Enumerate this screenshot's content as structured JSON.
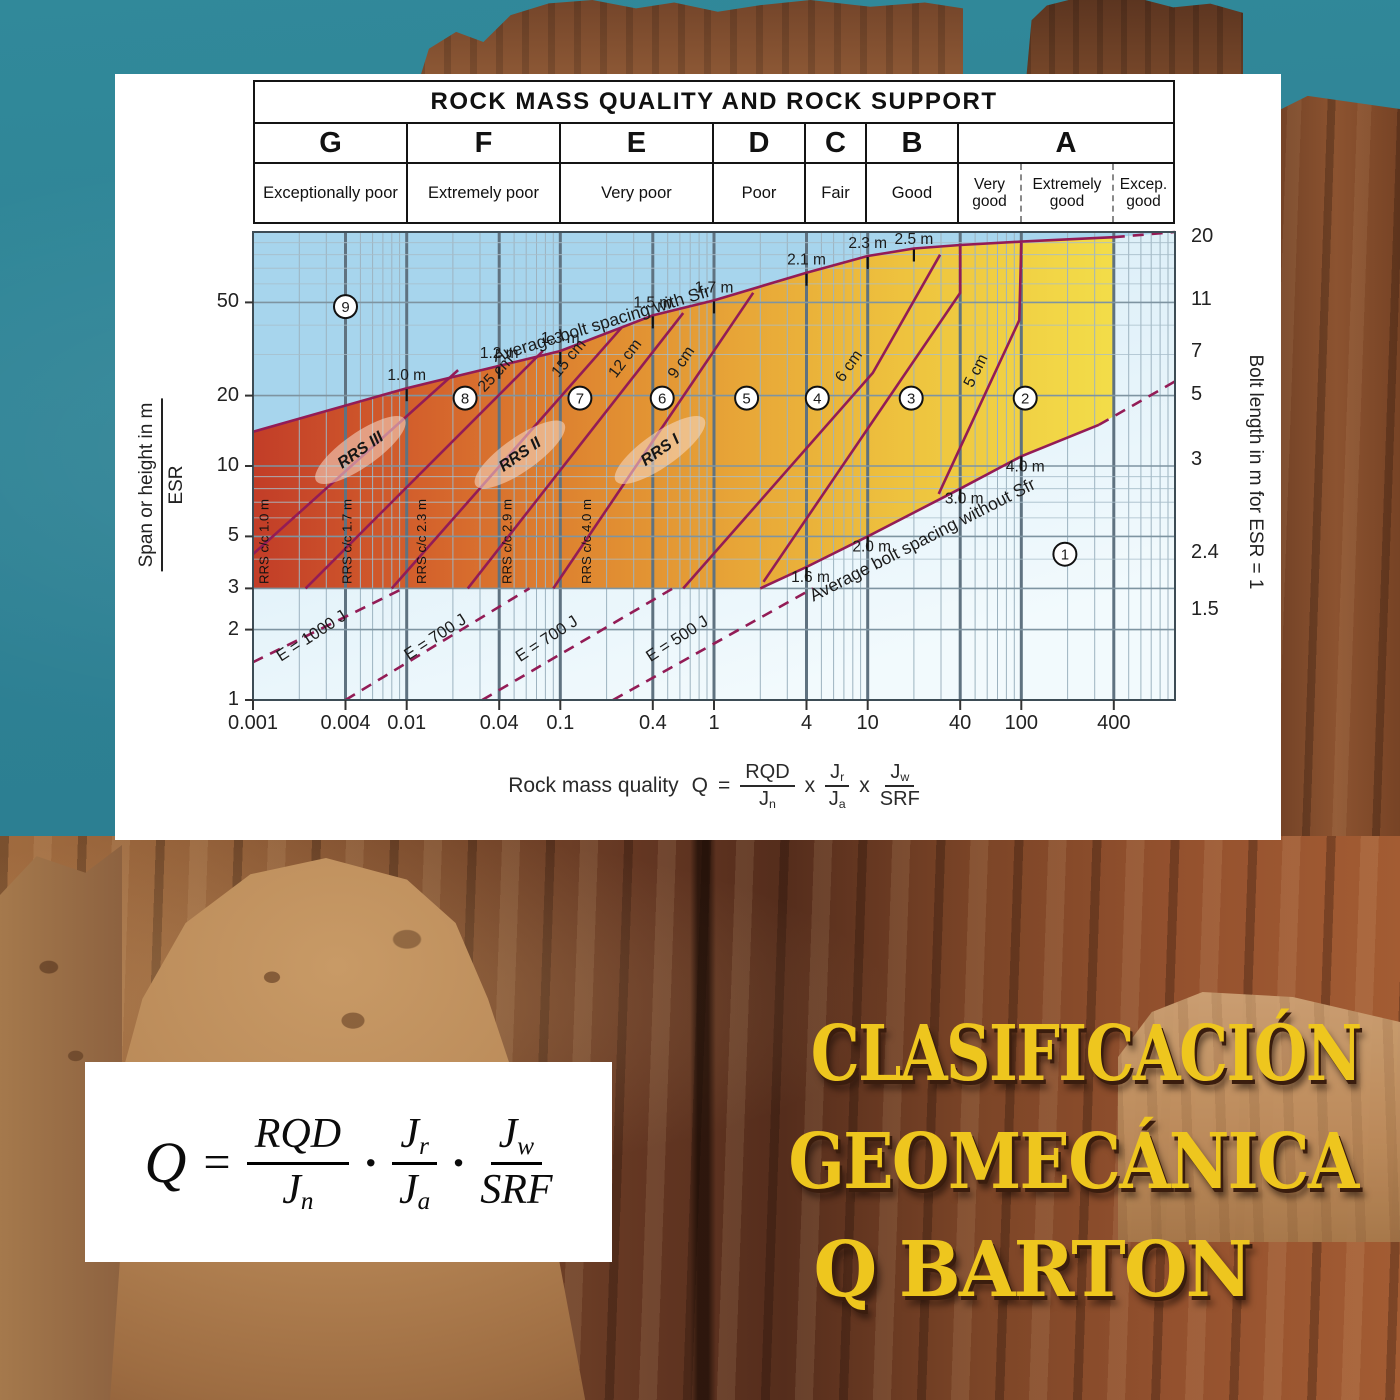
{
  "poster": {
    "line1": "CLASIFICACIÓN",
    "line2": "GEOMECÁNICA",
    "line3": "Q BARTON",
    "color": "#eec61e"
  },
  "box_formula": {
    "lhs": "Q",
    "eq": "=",
    "dot": "·",
    "terms": [
      {
        "num": "RQD",
        "num_sub": "",
        "den": "J",
        "den_sub": "n"
      },
      {
        "num": "J",
        "num_sub": "r",
        "den": "J",
        "den_sub": "a"
      },
      {
        "num": "J",
        "num_sub": "w",
        "den": "SRF",
        "den_sub": ""
      }
    ]
  },
  "chart": {
    "header": {
      "title": "ROCK MASS QUALITY AND ROCK SUPPORT",
      "columns": [
        {
          "letter": "G",
          "label": "Exceptionally poor",
          "q1": 0.001,
          "q2": 0.01
        },
        {
          "letter": "F",
          "label": "Extremely poor",
          "q1": 0.01,
          "q2": 0.1
        },
        {
          "letter": "E",
          "label": "Very poor",
          "q1": 0.1,
          "q2": 1
        },
        {
          "letter": "D",
          "label": "Poor",
          "q1": 1,
          "q2": 4
        },
        {
          "letter": "C",
          "label": "Fair",
          "q1": 4,
          "q2": 10
        },
        {
          "letter": "B",
          "label": "Good",
          "q1": 10,
          "q2": 40
        },
        {
          "letter": "A",
          "label": "",
          "q1": 40,
          "q2": 1000
        }
      ],
      "a_sub": [
        {
          "label": "Very good",
          "q1": 40,
          "q2": 100
        },
        {
          "label": "Extremely good",
          "q1": 100,
          "q2": 400
        },
        {
          "label": "Excep. good",
          "q1": 400,
          "q2": 1000
        }
      ]
    },
    "left_axis": {
      "title_num": "Span or height in m",
      "title_den": "ESR",
      "ticks": [
        {
          "label": "50",
          "s": 50
        },
        {
          "label": "20",
          "s": 20
        },
        {
          "label": "10",
          "s": 10
        },
        {
          "label": "5",
          "s": 5
        },
        {
          "label": "3",
          "s": 3
        },
        {
          "label": "2",
          "s": 2
        },
        {
          "label": "1",
          "s": 1
        }
      ]
    },
    "bottom_axis": {
      "ticks": [
        {
          "label": "0.001",
          "q": 0.001
        },
        {
          "label": "0.004",
          "q": 0.004
        },
        {
          "label": "0.01",
          "q": 0.01
        },
        {
          "label": "0.04",
          "q": 0.04
        },
        {
          "label": "0.1",
          "q": 0.1
        },
        {
          "label": "0.4",
          "q": 0.4
        },
        {
          "label": "1",
          "q": 1
        },
        {
          "label": "4",
          "q": 4
        },
        {
          "label": "10",
          "q": 10
        },
        {
          "label": "40",
          "q": 40
        },
        {
          "label": "100",
          "q": 100
        },
        {
          "label": "400",
          "q": 400
        }
      ]
    },
    "right_axis": {
      "title": "Bolt length in m for ESR = 1",
      "ticks": [
        {
          "label": "20",
          "f": 0.011
        },
        {
          "label": "11",
          "f": 0.145
        },
        {
          "label": "7",
          "f": 0.256
        },
        {
          "label": "5",
          "f": 0.348
        },
        {
          "label": "3",
          "f": 0.487
        },
        {
          "label": "2.4",
          "f": 0.686
        },
        {
          "label": "1.5",
          "f": 0.808
        }
      ]
    },
    "caption": {
      "lead": "Rock mass quality",
      "lhs": "Q",
      "eq": "=",
      "mult": "x",
      "terms": [
        {
          "num": "RQD",
          "num_sub": "",
          "den": "J",
          "den_sub": "n"
        },
        {
          "num": "J",
          "num_sub": "r",
          "den": "J",
          "den_sub": "a"
        },
        {
          "num": "J",
          "num_sub": "w",
          "den": "SRF",
          "den_sub": ""
        }
      ]
    },
    "chart_data": {
      "type": "line",
      "title": "ROCK MASS QUALITY AND ROCK SUPPORT",
      "x_axis": {
        "label": "Rock mass quality Q",
        "scale": "log",
        "range": [
          0.001,
          1000
        ]
      },
      "y_axis": {
        "label": "Span or height in m / ESR",
        "scale": "log",
        "range": [
          1,
          100
        ]
      },
      "colors": {
        "line": "#931c56",
        "zone_blue": "#a7d5ed",
        "pale_blue": "#cfe8f5",
        "band": [
          "#c23d28",
          "#d4622c",
          "#e08a31",
          "#e8a838",
          "#eec33e",
          "#f3dd49"
        ]
      },
      "boundaries": {
        "bolt_spacing_with_sfr": {
          "solid": [
            [
              0.001,
              14
            ],
            [
              0.01,
              21.5
            ],
            [
              0.1,
              31
            ],
            [
              0.4,
              44
            ],
            [
              1,
              51
            ],
            [
              4,
              67
            ],
            [
              10,
              79
            ],
            [
              20,
              85
            ],
            [
              40,
              88
            ],
            [
              100,
              91
            ],
            [
              400,
              95
            ]
          ],
          "dashed": [
            [
              400,
              95
            ],
            [
              1000,
              100
            ]
          ]
        },
        "bolt_spacing_without_sfr": {
          "solid": [
            [
              2,
              3
            ],
            [
              4,
              3.7
            ],
            [
              10,
              5
            ],
            [
              40,
              8
            ],
            [
              100,
              11
            ],
            [
              320,
              15
            ]
          ],
          "dashed": [
            [
              320,
              15
            ],
            [
              1000,
              23
            ]
          ]
        },
        "band_bottom_span": 3
      },
      "zone_lines": [
        [
          [
            0.001,
            4.2
          ],
          [
            0.0216,
            25.7
          ]
        ],
        [
          [
            0.0022,
            3
          ],
          [
            0.077,
            31
          ]
        ],
        [
          [
            0.008,
            3
          ],
          [
            0.25,
            39
          ]
        ],
        [
          [
            0.025,
            3
          ],
          [
            0.63,
            45
          ]
        ],
        [
          [
            0.09,
            3
          ],
          [
            1.8,
            55
          ]
        ],
        [
          [
            0.63,
            3
          ],
          [
            10.8,
            25
          ],
          [
            29.6,
            80
          ]
        ],
        [
          [
            2.1,
            3.2
          ],
          [
            40,
            55
          ],
          [
            40,
            88
          ]
        ],
        [
          [
            29,
            7.6
          ],
          [
            97,
            42
          ],
          [
            100,
            90
          ]
        ]
      ],
      "energy_lines": [
        {
          "label": "E = 1000 J",
          "pts": [
            [
              0.001,
              1.45
            ],
            [
              0.0095,
              3
            ]
          ],
          "label_at": [
            0.0025,
            1.8
          ]
        },
        {
          "label": "E = 700 J",
          "pts": [
            [
              0.004,
              1
            ],
            [
              0.063,
              3
            ]
          ],
          "label_at": [
            0.016,
            1.78
          ]
        },
        {
          "label": "E = 700 J",
          "pts": [
            [
              0.031,
              1
            ],
            [
              0.54,
              3
            ]
          ],
          "label_at": [
            0.085,
            1.75
          ]
        },
        {
          "label": "E = 500 J",
          "pts": [
            [
              0.22,
              1
            ],
            [
              4.4,
              3
            ]
          ],
          "label_at": [
            0.6,
            1.75
          ]
        }
      ],
      "spacing_ticks_with": [
        {
          "label": "1.0 m",
          "q": 0.01
        },
        {
          "label": "1.2 m",
          "q": 0.04
        },
        {
          "label": "1.3 m",
          "q": 0.1
        },
        {
          "label": "1.5 m",
          "q": 0.4
        },
        {
          "label": "1.7 m",
          "q": 1
        },
        {
          "label": "2.1 m",
          "q": 4
        },
        {
          "label": "2.3 m",
          "q": 10
        },
        {
          "label": "2.5 m",
          "q": 20
        }
      ],
      "spacing_ticks_without": [
        {
          "label": "1.6 m",
          "q": 4
        },
        {
          "label": "2.0 m",
          "q": 10
        },
        {
          "label": "3.0 m",
          "q": 40
        },
        {
          "label": "4.0 m",
          "q": 100
        }
      ],
      "cm_labels": [
        {
          "label": "25 cm",
          "q": 0.04,
          "s": 24,
          "rot": -47
        },
        {
          "label": "15 cm",
          "q": 0.12,
          "s": 28,
          "rot": -50
        },
        {
          "label": "12 cm",
          "q": 0.28,
          "s": 28,
          "rot": -53
        },
        {
          "label": "9 cm",
          "q": 0.65,
          "s": 27,
          "rot": -56
        },
        {
          "label": "6 cm",
          "q": 8,
          "s": 26,
          "rot": -55
        },
        {
          "label": "5 cm",
          "q": 54,
          "s": 25,
          "rot": -63
        }
      ],
      "line_annotations": [
        {
          "label": "Average bolt spacing with Sfr",
          "q": 0.19,
          "s": 38.5,
          "rot": -17
        },
        {
          "label": "Average bolt spacing without Sfr",
          "q": 23.6,
          "s": 4.6,
          "rot": -27
        }
      ],
      "rrs": [
        {
          "label": "RRS III",
          "q": 0.005,
          "s": 11.7
        },
        {
          "label": "RRS II",
          "q": 0.0546,
          "s": 11.2
        },
        {
          "label": "RRS I",
          "q": 0.445,
          "s": 11.7
        }
      ],
      "rrs_cc": [
        {
          "label": "RRS  c/c 1.0 m",
          "q": 0.00115
        },
        {
          "label": "RRS  c/c 1.7 m",
          "q": 0.004
        },
        {
          "label": "RRS  c/c 2.3 m",
          "q": 0.0122
        },
        {
          "label": "RRS  c/c 2.9 m",
          "q": 0.044
        },
        {
          "label": "RRS  c/c 4.0 m",
          "q": 0.145
        }
      ],
      "zones": [
        {
          "n": 9,
          "q": 0.004,
          "s": 48
        },
        {
          "n": 8,
          "q": 0.024,
          "s": 19.5
        },
        {
          "n": 7,
          "q": 0.134,
          "s": 19.5
        },
        {
          "n": 6,
          "q": 0.46,
          "s": 19.5
        },
        {
          "n": 5,
          "q": 1.63,
          "s": 19.5
        },
        {
          "n": 4,
          "q": 4.7,
          "s": 19.5
        },
        {
          "n": 3,
          "q": 19.2,
          "s": 19.5
        },
        {
          "n": 2,
          "q": 106,
          "s": 19.5
        },
        {
          "n": 1,
          "q": 192,
          "s": 4.2
        }
      ]
    }
  }
}
